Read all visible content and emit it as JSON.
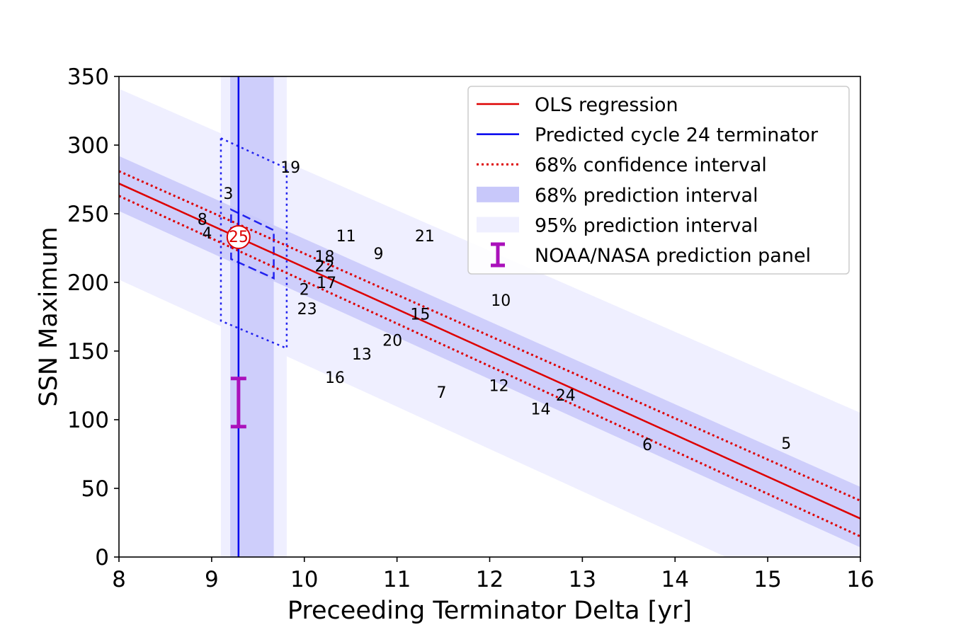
{
  "chart_data": {
    "type": "scatter",
    "title": "",
    "xlabel": "Preceeding Terminator Delta [yr]",
    "ylabel": "SSN Maximum",
    "xlim": [
      8,
      16
    ],
    "ylim": [
      0,
      350
    ],
    "xticks": [
      8,
      9,
      10,
      11,
      12,
      13,
      14,
      15,
      16
    ],
    "yticks": [
      0,
      50,
      100,
      150,
      200,
      250,
      300,
      350
    ],
    "grid": false,
    "legend_position": "top-right",
    "legend": [
      {
        "label": "OLS regression",
        "style": "line",
        "color": "#dd0000"
      },
      {
        "label": "Predicted cycle 24 terminator",
        "style": "line",
        "color": "#0000ee"
      },
      {
        "label": "68% confidence interval",
        "style": "dotted",
        "color": "#dd0000"
      },
      {
        "label": "68% prediction interval",
        "style": "band",
        "color": "#c8c8fa"
      },
      {
        "label": "95% prediction interval",
        "style": "band",
        "color": "#efefff"
      },
      {
        "label": "NOAA/NASA prediction panel",
        "style": "errorbar",
        "color": "#aa11bb"
      }
    ],
    "regression": {
      "ols": [
        [
          8,
          272
        ],
        [
          16,
          28
        ]
      ],
      "ci68_upper": [
        [
          8,
          281
        ],
        [
          16,
          41
        ]
      ],
      "ci68_lower": [
        [
          8,
          263
        ],
        [
          16,
          15
        ]
      ],
      "pi68_upper": [
        [
          8,
          292
        ],
        [
          16,
          51
        ]
      ],
      "pi68_lower": [
        [
          8,
          252
        ],
        [
          16,
          7
        ]
      ],
      "pi95_upper": [
        [
          8,
          341
        ],
        [
          16,
          105
        ]
      ],
      "pi95_lower": [
        [
          8,
          202
        ],
        [
          14.55,
          0
        ],
        [
          16,
          0
        ]
      ]
    },
    "terminator": {
      "value": 9.29,
      "pi68": [
        9.2,
        9.67
      ],
      "pi95": [
        9.1,
        9.81
      ]
    },
    "prediction_boxes": {
      "box68": [
        [
          9.21,
          253
        ],
        [
          9.67,
          238
        ],
        [
          9.67,
          203
        ],
        [
          9.21,
          217
        ]
      ],
      "box95": [
        [
          9.1,
          305
        ],
        [
          9.81,
          283
        ],
        [
          9.81,
          152
        ],
        [
          9.1,
          172
        ]
      ]
    },
    "noaa_panel": {
      "x": 9.29,
      "low": 95,
      "high": 130
    },
    "cycle_25_prediction": {
      "label": "25",
      "x": 9.29,
      "y": 233
    },
    "points": [
      {
        "label": "2",
        "x": 10.0,
        "y": 194
      },
      {
        "label": "3",
        "x": 9.18,
        "y": 264
      },
      {
        "label": "4",
        "x": 8.95,
        "y": 235
      },
      {
        "label": "5",
        "x": 15.2,
        "y": 82
      },
      {
        "label": "6",
        "x": 13.7,
        "y": 81
      },
      {
        "label": "7",
        "x": 11.48,
        "y": 119
      },
      {
        "label": "8",
        "x": 8.9,
        "y": 245
      },
      {
        "label": "9",
        "x": 10.8,
        "y": 220
      },
      {
        "label": "10",
        "x": 12.12,
        "y": 186
      },
      {
        "label": "11",
        "x": 10.45,
        "y": 233
      },
      {
        "label": "12",
        "x": 12.1,
        "y": 124
      },
      {
        "label": "13",
        "x": 10.62,
        "y": 147
      },
      {
        "label": "14",
        "x": 12.55,
        "y": 107
      },
      {
        "label": "15",
        "x": 11.25,
        "y": 176
      },
      {
        "label": "16",
        "x": 10.33,
        "y": 130
      },
      {
        "label": "17",
        "x": 10.24,
        "y": 199
      },
      {
        "label": "18",
        "x": 10.22,
        "y": 218
      },
      {
        "label": "19",
        "x": 9.85,
        "y": 283
      },
      {
        "label": "20",
        "x": 10.95,
        "y": 157
      },
      {
        "label": "21",
        "x": 11.3,
        "y": 233
      },
      {
        "label": "22",
        "x": 10.22,
        "y": 211
      },
      {
        "label": "23",
        "x": 10.03,
        "y": 180
      },
      {
        "label": "24",
        "x": 12.82,
        "y": 117
      }
    ]
  },
  "colors": {
    "ols": "#dd0000",
    "terminator": "#0000ee",
    "band68": "#c8c8fa",
    "band95": "#efefff",
    "noaa": "#aa11bb",
    "box": "#2222ee"
  }
}
